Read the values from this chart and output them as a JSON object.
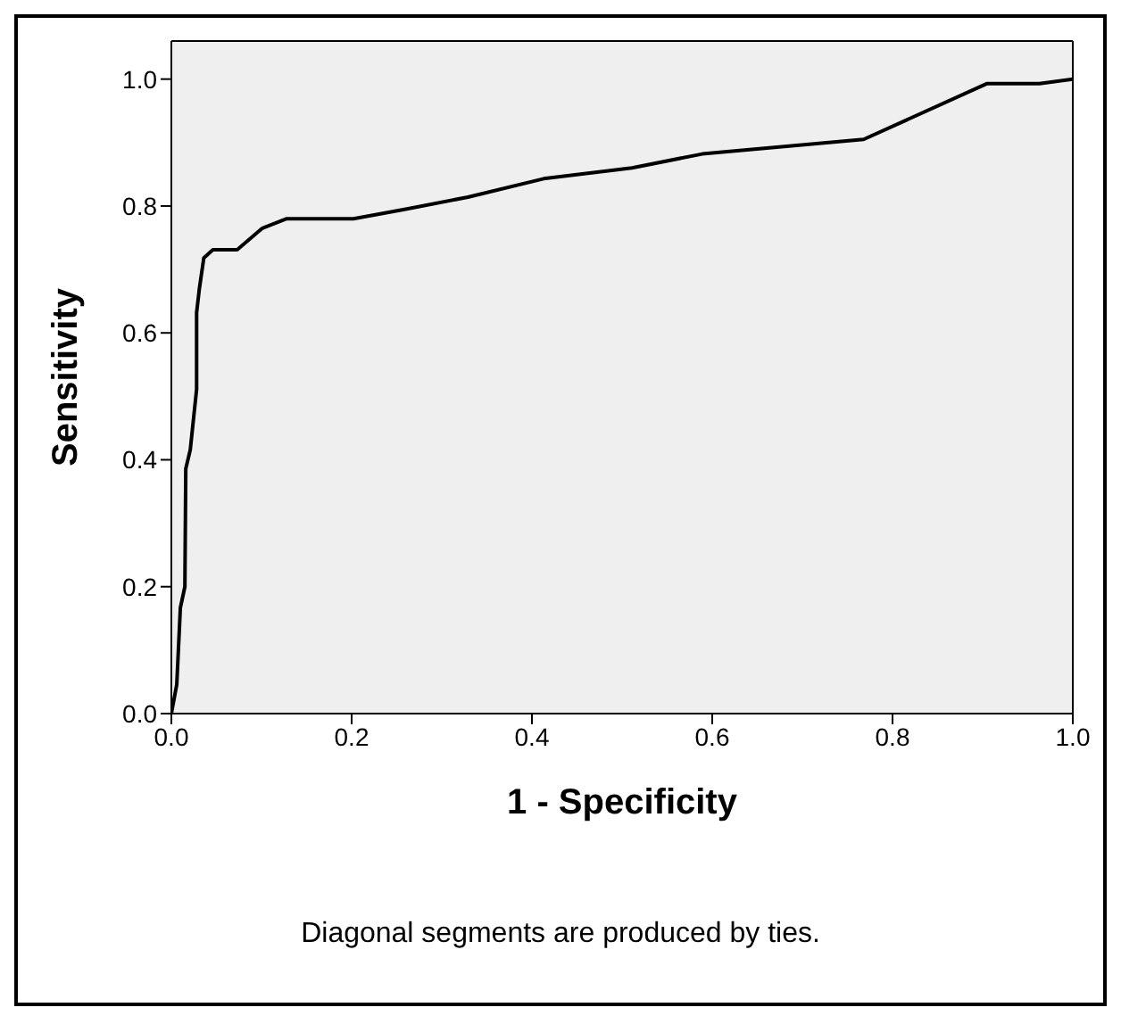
{
  "chart_data": {
    "type": "line",
    "xlabel": "1 - Specificity",
    "ylabel": "Sensitivity",
    "x": [
      0,
      0.006,
      0.01,
      0.015,
      0.016,
      0.021,
      0.028,
      0.028,
      0.031,
      0.036,
      0.046,
      0.073,
      0.101,
      0.128,
      0.202,
      0.26,
      0.329,
      0.413,
      0.511,
      0.589,
      0.768,
      0.905,
      0.963,
      1.0
    ],
    "series": [
      {
        "color": "#000000",
        "values": [
          0,
          0.046,
          0.167,
          0.2,
          0.386,
          0.416,
          0.511,
          0.632,
          0.669,
          0.718,
          0.731,
          0.731,
          0.765,
          0.78,
          0.78,
          0.795,
          0.814,
          0.843,
          0.86,
          0.882,
          0.905,
          0.993,
          0.993,
          1.0
        ]
      }
    ],
    "xlim": [
      0,
      1
    ],
    "ylim": [
      0,
      1.06
    ],
    "xticks": [
      {
        "value": 0,
        "label": "0.0"
      },
      0.2,
      0.4,
      0.6,
      0.8,
      {
        "value": 1,
        "label": "1.0"
      }
    ],
    "yticks": [
      {
        "value": 0,
        "label": "0.0"
      },
      0.2,
      0.4,
      0.6,
      0.8,
      {
        "value": 1,
        "label": "1.0"
      }
    ],
    "grid": false,
    "legend": false,
    "marker": "none",
    "line_style": "solid",
    "annotations": [
      "Diagonal segments are produced by ties."
    ]
  }
}
